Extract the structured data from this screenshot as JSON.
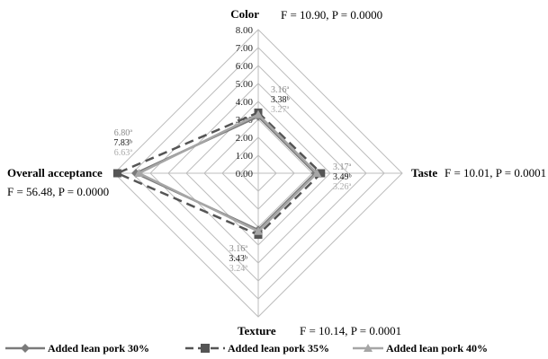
{
  "chart_data": {
    "type": "radar",
    "rmax": 8,
    "ticks": [
      "0.00",
      "1.00",
      "2.00",
      "3.00",
      "4.00",
      "5.00",
      "6.00",
      "7.00",
      "8.00"
    ],
    "axes": [
      {
        "name": "Color",
        "stat": "F = 10.90, P = 0.0000"
      },
      {
        "name": "Taste",
        "stat": "F = 10.01, P = 0.0001"
      },
      {
        "name": "Texture",
        "stat": "F = 10.14, P = 0.0001"
      },
      {
        "name": "Overall acceptance",
        "stat": "F = 56.48, P = 0.0000"
      }
    ],
    "series": [
      {
        "name": "Added lean pork 30%",
        "color": "#7a7a7a",
        "marker": "diamond",
        "dash": "solid",
        "values": [
          3.16,
          3.17,
          3.16,
          6.8
        ],
        "labels": [
          "3.16ª",
          "3.17ª",
          "3.16ª",
          "6.80ª"
        ]
      },
      {
        "name": "Added lean pork 35%",
        "color": "#555555",
        "marker": "square",
        "dash": "dashed",
        "values": [
          3.38,
          3.49,
          3.43,
          7.83
        ],
        "labels": [
          "3.38ᵇ",
          "3.49ᵇ",
          "3.43ᵇ",
          "7.83ᵇ"
        ]
      },
      {
        "name": "Added lean pork 40%",
        "color": "#a6a6a6",
        "marker": "triangle",
        "dash": "solid",
        "values": [
          3.27,
          3.26,
          3.24,
          6.63
        ],
        "labels": [
          "3.27ª",
          "3.26ª",
          "3.24ª",
          "6.63ª"
        ]
      }
    ]
  }
}
